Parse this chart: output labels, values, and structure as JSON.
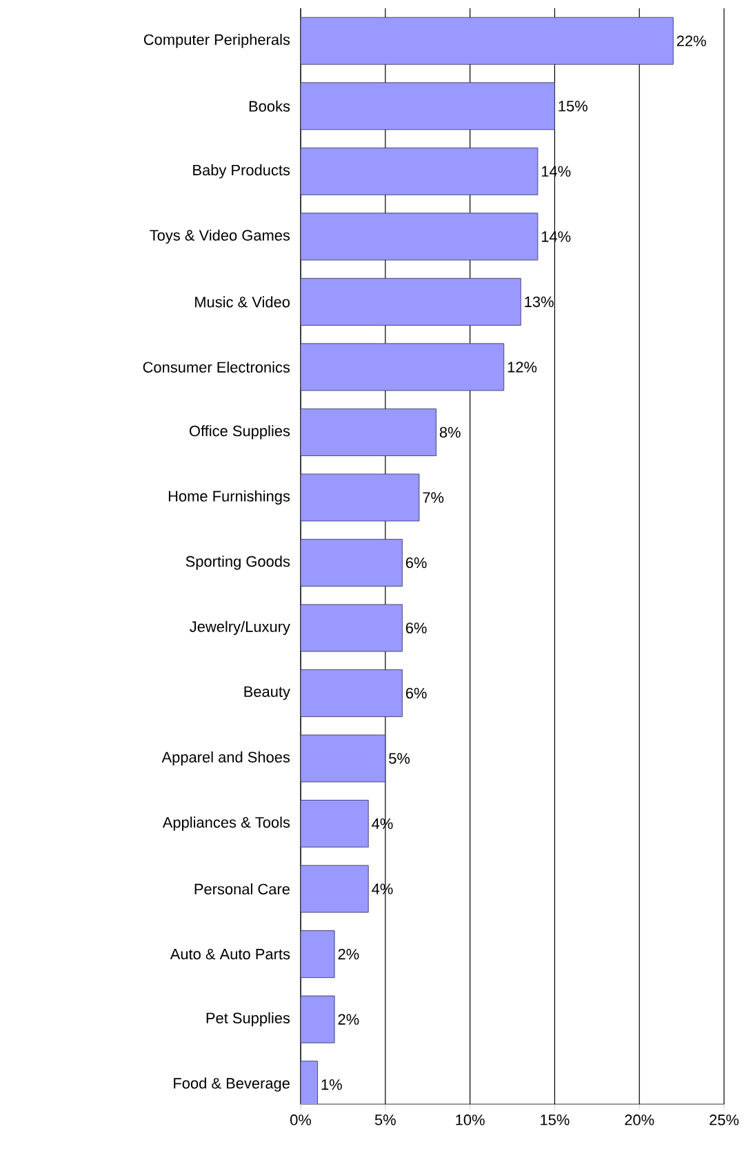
{
  "chart_data": {
    "type": "bar",
    "orientation": "horizontal",
    "categories": [
      "Computer Peripherals",
      "Books",
      "Baby Products",
      "Toys & Video Games",
      "Music & Video",
      "Consumer Electronics",
      "Office Supplies",
      "Home Furnishings",
      "Sporting Goods",
      "Jewelry/Luxury",
      "Beauty",
      "Apparel and Shoes",
      "Appliances & Tools",
      "Personal Care",
      "Auto & Auto Parts",
      "Pet Supplies",
      "Food & Beverage"
    ],
    "values": [
      22,
      15,
      14,
      14,
      13,
      12,
      8,
      7,
      6,
      6,
      6,
      5,
      4,
      4,
      2,
      2,
      1
    ],
    "value_labels": [
      "22%",
      "15%",
      "14%",
      "14%",
      "13%",
      "12%",
      "8%",
      "7%",
      "6%",
      "6%",
      "6%",
      "5%",
      "4%",
      "4%",
      "2%",
      "2%",
      "1%"
    ],
    "color": "#9999ff",
    "xlim": [
      0,
      25
    ],
    "xticks": [
      {
        "value": 0,
        "label": "0%"
      },
      {
        "value": 5,
        "label": "5%"
      },
      {
        "value": 10,
        "label": "10%"
      },
      {
        "value": 15,
        "label": "15%"
      },
      {
        "value": 20,
        "label": "20%"
      },
      {
        "value": 25,
        "label": "25%"
      }
    ],
    "grid": "x"
  }
}
